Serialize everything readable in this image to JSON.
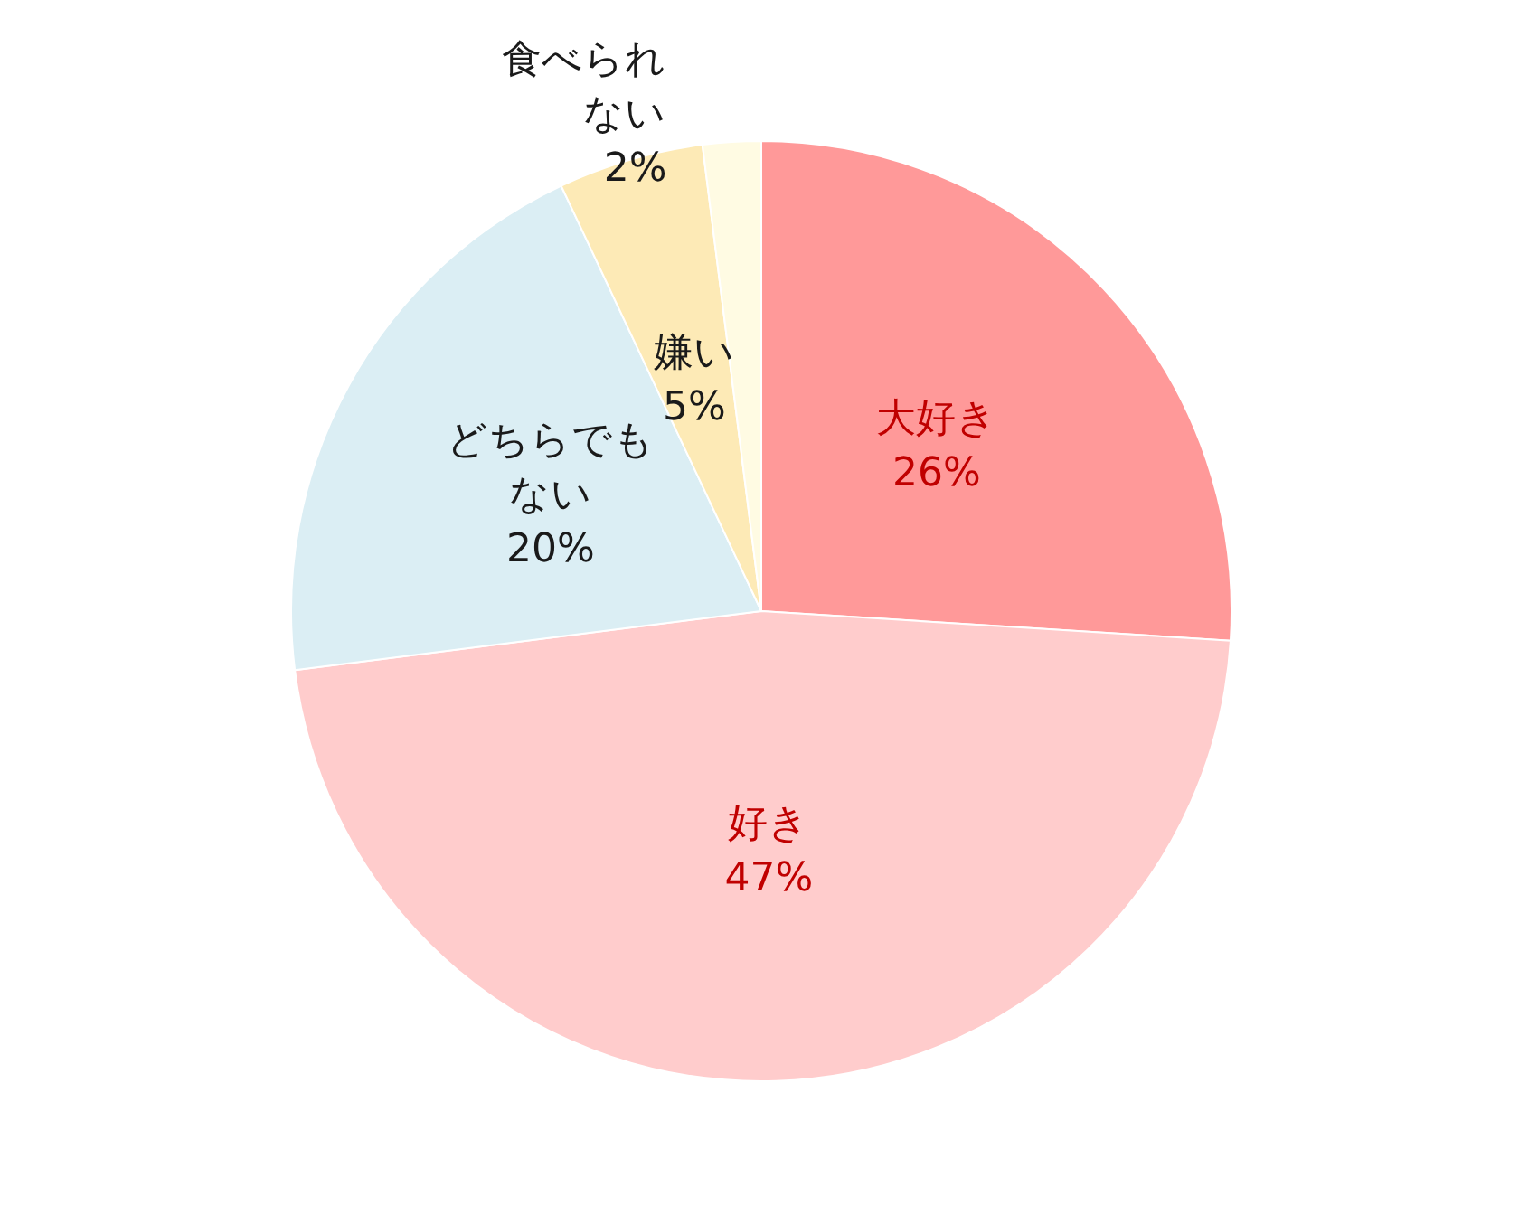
{
  "chart_data": {
    "type": "pie",
    "categories": [
      "大好き",
      "好き",
      "どちらでもない",
      "嫌い",
      "食べられない"
    ],
    "values": [
      26,
      47,
      20,
      5,
      2
    ],
    "colors": [
      "#ff9999",
      "#ffcccc",
      "#dbeef4",
      "#fdeab6",
      "#fffbe3"
    ],
    "value_labels": [
      "26%",
      "47%",
      "20%",
      "5%",
      "2%"
    ],
    "legend": false
  }
}
